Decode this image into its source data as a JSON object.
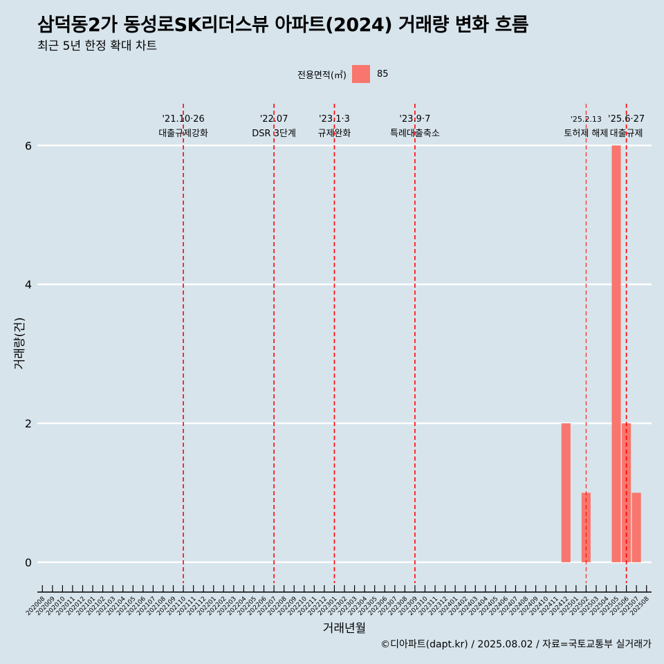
{
  "header": {
    "title": "삼덕동2가 동성로SK리더스뷰 아파트(2024) 거래량 변화 흐름",
    "subtitle": "최근 5년 한정 확대 차트"
  },
  "legend": {
    "title": "전용면적(㎡)",
    "label": "85",
    "color": "#f8766d"
  },
  "caption": "©디아파트(dapt.kr) / 2025.08.02 / 자료=국토교통부 실거래가",
  "chart_data": {
    "type": "bar",
    "xlabel": "거래년월",
    "ylabel": "거래량(건)",
    "ylim": [
      -0.3,
      6.6
    ],
    "yticks": [
      0,
      2,
      4,
      6
    ],
    "grid": true,
    "legend_position": "top",
    "categories": [
      "202008",
      "202009",
      "202010",
      "202011",
      "202012",
      "202101",
      "202102",
      "202103",
      "202104",
      "202105",
      "202106",
      "202107",
      "202108",
      "202109",
      "202110",
      "202111",
      "202112",
      "202201",
      "202202",
      "202203",
      "202204",
      "202205",
      "202206",
      "202207",
      "202208",
      "202209",
      "202210",
      "202211",
      "202212",
      "202301",
      "202302",
      "202303",
      "202304",
      "202305",
      "202306",
      "202307",
      "202308",
      "202309",
      "202310",
      "202311",
      "202312",
      "202401",
      "202402",
      "202403",
      "202404",
      "202405",
      "202406",
      "202407",
      "202408",
      "202409",
      "202410",
      "202411",
      "202412",
      "202501",
      "202502",
      "202503",
      "202504",
      "202505",
      "202506",
      "202507",
      "202508"
    ],
    "series": [
      {
        "name": "85",
        "color": "#f8766d",
        "values": [
          0,
          0,
          0,
          0,
          0,
          0,
          0,
          0,
          0,
          0,
          0,
          0,
          0,
          0,
          0,
          0,
          0,
          0,
          0,
          0,
          0,
          0,
          0,
          0,
          0,
          0,
          0,
          0,
          0,
          0,
          0,
          0,
          0,
          0,
          0,
          0,
          0,
          0,
          0,
          0,
          0,
          0,
          0,
          0,
          0,
          0,
          0,
          0,
          0,
          0,
          0,
          0,
          2,
          0,
          1,
          0,
          0,
          6,
          2,
          1,
          0
        ]
      }
    ],
    "annotations": [
      {
        "x": "202110",
        "date": "'21.10·26",
        "label": "대출규제강화"
      },
      {
        "x": "202207",
        "date": "'22.07",
        "label": "DSR 3단계"
      },
      {
        "x": "202301",
        "date": "'23.1·3",
        "label": "규제완화"
      },
      {
        "x": "202309",
        "date": "'23.9·7",
        "label": "특례대출축소"
      },
      {
        "x": "202502",
        "date": "'25.2.13",
        "label": "토허제 해제"
      },
      {
        "x": "202506",
        "date": "'25.6·27",
        "label": "대출규제"
      }
    ]
  }
}
